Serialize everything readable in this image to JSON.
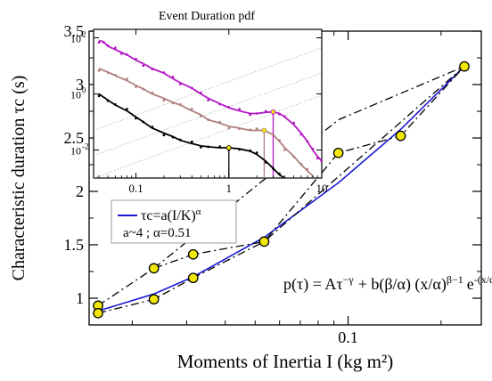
{
  "chart_data": {
    "type": "scatter",
    "main": {
      "xlabel": "Moments of Inertia I (kg m²)",
      "ylabel": "Characteristic duration τc (s)",
      "xscale": "log",
      "xlim": [
        0.0145,
        0.27
      ],
      "ylim": [
        0.75,
        3.5
      ],
      "yticks": [
        1,
        1.5,
        2,
        2.5,
        3,
        3.5
      ],
      "ytick_labels": [
        "1",
        "1.5",
        "2",
        "2.5",
        "3",
        "3.5"
      ],
      "xticks": [
        0.1
      ],
      "xtick_labels": [
        "0.1"
      ],
      "grid": false,
      "points": [
        {
          "x": 0.0155,
          "y": 0.93
        },
        {
          "x": 0.0155,
          "y": 0.86
        },
        {
          "x": 0.0235,
          "y": 1.28
        },
        {
          "x": 0.0235,
          "y": 0.99
        },
        {
          "x": 0.0315,
          "y": 1.41
        },
        {
          "x": 0.0315,
          "y": 1.19
        },
        {
          "x": 0.0535,
          "y": 1.53
        },
        {
          "x": 0.093,
          "y": 2.36
        },
        {
          "x": 0.148,
          "y": 2.52
        },
        {
          "x": 0.238,
          "y": 3.17
        }
      ],
      "series": [
        {
          "name": "τc=a(I/K)^α",
          "style": "solid",
          "color": "#1c1cd6",
          "x": [
            0.0155,
            0.0235,
            0.0315,
            0.0535,
            0.093,
            0.148,
            0.238
          ],
          "y": [
            0.88,
            1.04,
            1.2,
            1.57,
            2.08,
            2.58,
            3.17
          ]
        },
        {
          "name": "",
          "style": "dashdot",
          "color": "#000000",
          "x": [
            0.0155,
            0.0235,
            0.0315,
            0.0535,
            0.093,
            0.148,
            0.238
          ],
          "y": [
            0.93,
            1.28,
            1.41,
            1.53,
            2.36,
            2.52,
            3.17
          ]
        },
        {
          "name": "",
          "style": "dashdot",
          "color": "#000000",
          "x": [
            0.0155,
            0.0235,
            0.0315,
            0.0535,
            0.238
          ],
          "y": [
            0.86,
            0.99,
            1.19,
            1.53,
            3.17
          ]
        },
        {
          "name": "",
          "style": "dashdot",
          "color": "#000000",
          "x": [
            0.0235,
            0.093,
            0.238
          ],
          "y": [
            1.28,
            2.67,
            3.17
          ]
        }
      ],
      "legend": {
        "position": "middle-left",
        "entries": [
          {
            "label": "τc=a(I/K)",
            "superscript": "α",
            "color": "#1c1cd6"
          }
        ],
        "note": "a~4 ; α=0.51"
      },
      "annotation": {
        "p": "p(τ) = Aτ",
        "sup1": "−γ",
        "plus": "+ b(β/α) (x/α)",
        "sup2": "β−1",
        "e": "e",
        "sup3": "-(x/α)",
        "sup4": "β"
      }
    },
    "inset": {
      "title": "Event Duration pdf",
      "xscale": "log",
      "yscale": "log",
      "xlim": [
        0.035,
        10
      ],
      "ylim": [
        0.001,
        200
      ],
      "xticks": [
        0.1,
        1,
        10
      ],
      "xtick_labels": [
        "0.1",
        "1",
        "10"
      ],
      "yticks": [
        0.01,
        1,
        100
      ],
      "ytick_labels": [
        "10",
        "10",
        "10"
      ],
      "ytick_exponents": [
        "-2",
        "0",
        "2"
      ],
      "series": [
        {
          "color": "#b318c4",
          "offset_pow": 1.7,
          "peak_x": 3.0,
          "points": [
            [
              0.04,
              80
            ],
            [
              0.045,
              72
            ],
            [
              0.05,
              50
            ],
            [
              0.06,
              38
            ],
            [
              0.07,
              30
            ],
            [
              0.08,
              25
            ],
            [
              0.1,
              16
            ],
            [
              0.12,
              12
            ],
            [
              0.15,
              8
            ],
            [
              0.2,
              5.5
            ],
            [
              0.25,
              3.5
            ],
            [
              0.3,
              2.5
            ],
            [
              0.4,
              1.6
            ],
            [
              0.5,
              1.0
            ],
            [
              0.6,
              0.7
            ],
            [
              0.8,
              0.45
            ],
            [
              1.0,
              0.32
            ],
            [
              1.3,
              0.25
            ],
            [
              1.7,
              0.2
            ],
            [
              2.0,
              0.2
            ],
            [
              2.5,
              0.22
            ],
            [
              3.0,
              0.23
            ],
            [
              3.5,
              0.2
            ],
            [
              4.0,
              0.15
            ],
            [
              5.0,
              0.08
            ],
            [
              6.0,
              0.04
            ],
            [
              7.0,
              0.02
            ],
            [
              8.0,
              0.01
            ],
            [
              9.0,
              0.006
            ],
            [
              10.0,
              0.004
            ]
          ]
        },
        {
          "color": "#b08080",
          "offset_pow": 0.8,
          "peak_x": 2.4,
          "points": [
            [
              0.04,
              8
            ],
            [
              0.05,
              6
            ],
            [
              0.06,
              4.5
            ],
            [
              0.08,
              3
            ],
            [
              0.1,
              2
            ],
            [
              0.12,
              1.5
            ],
            [
              0.15,
              1.0
            ],
            [
              0.2,
              0.7
            ],
            [
              0.25,
              0.5
            ],
            [
              0.3,
              0.4
            ],
            [
              0.4,
              0.25
            ],
            [
              0.5,
              0.18
            ],
            [
              0.6,
              0.12
            ],
            [
              0.8,
              0.09
            ],
            [
              1.0,
              0.07
            ],
            [
              1.3,
              0.06
            ],
            [
              1.7,
              0.05
            ],
            [
              2.0,
              0.05
            ],
            [
              2.4,
              0.05
            ],
            [
              3.0,
              0.035
            ],
            [
              3.5,
              0.02
            ],
            [
              4.0,
              0.012
            ],
            [
              5.0,
              0.006
            ],
            [
              6.0,
              0.003
            ],
            [
              7.0,
              0.0018
            ],
            [
              8.0,
              0.0012
            ]
          ]
        },
        {
          "color": "#000000",
          "offset_pow": 0,
          "peak_x": 1.0,
          "points": [
            [
              0.04,
              1.0
            ],
            [
              0.05,
              0.6
            ],
            [
              0.06,
              0.4
            ],
            [
              0.08,
              0.25
            ],
            [
              0.1,
              0.15
            ],
            [
              0.12,
              0.1
            ],
            [
              0.15,
              0.06
            ],
            [
              0.2,
              0.04
            ],
            [
              0.25,
              0.03
            ],
            [
              0.3,
              0.022
            ],
            [
              0.4,
              0.017
            ],
            [
              0.5,
              0.014
            ],
            [
              0.6,
              0.013
            ],
            [
              0.8,
              0.012
            ],
            [
              1.0,
              0.012
            ],
            [
              1.3,
              0.011
            ],
            [
              1.7,
              0.009
            ],
            [
              2.0,
              0.007
            ],
            [
              2.5,
              0.004
            ],
            [
              3.0,
              0.0022
            ],
            [
              3.5,
              0.0013
            ],
            [
              4.0,
              0.001
            ]
          ]
        }
      ]
    }
  }
}
